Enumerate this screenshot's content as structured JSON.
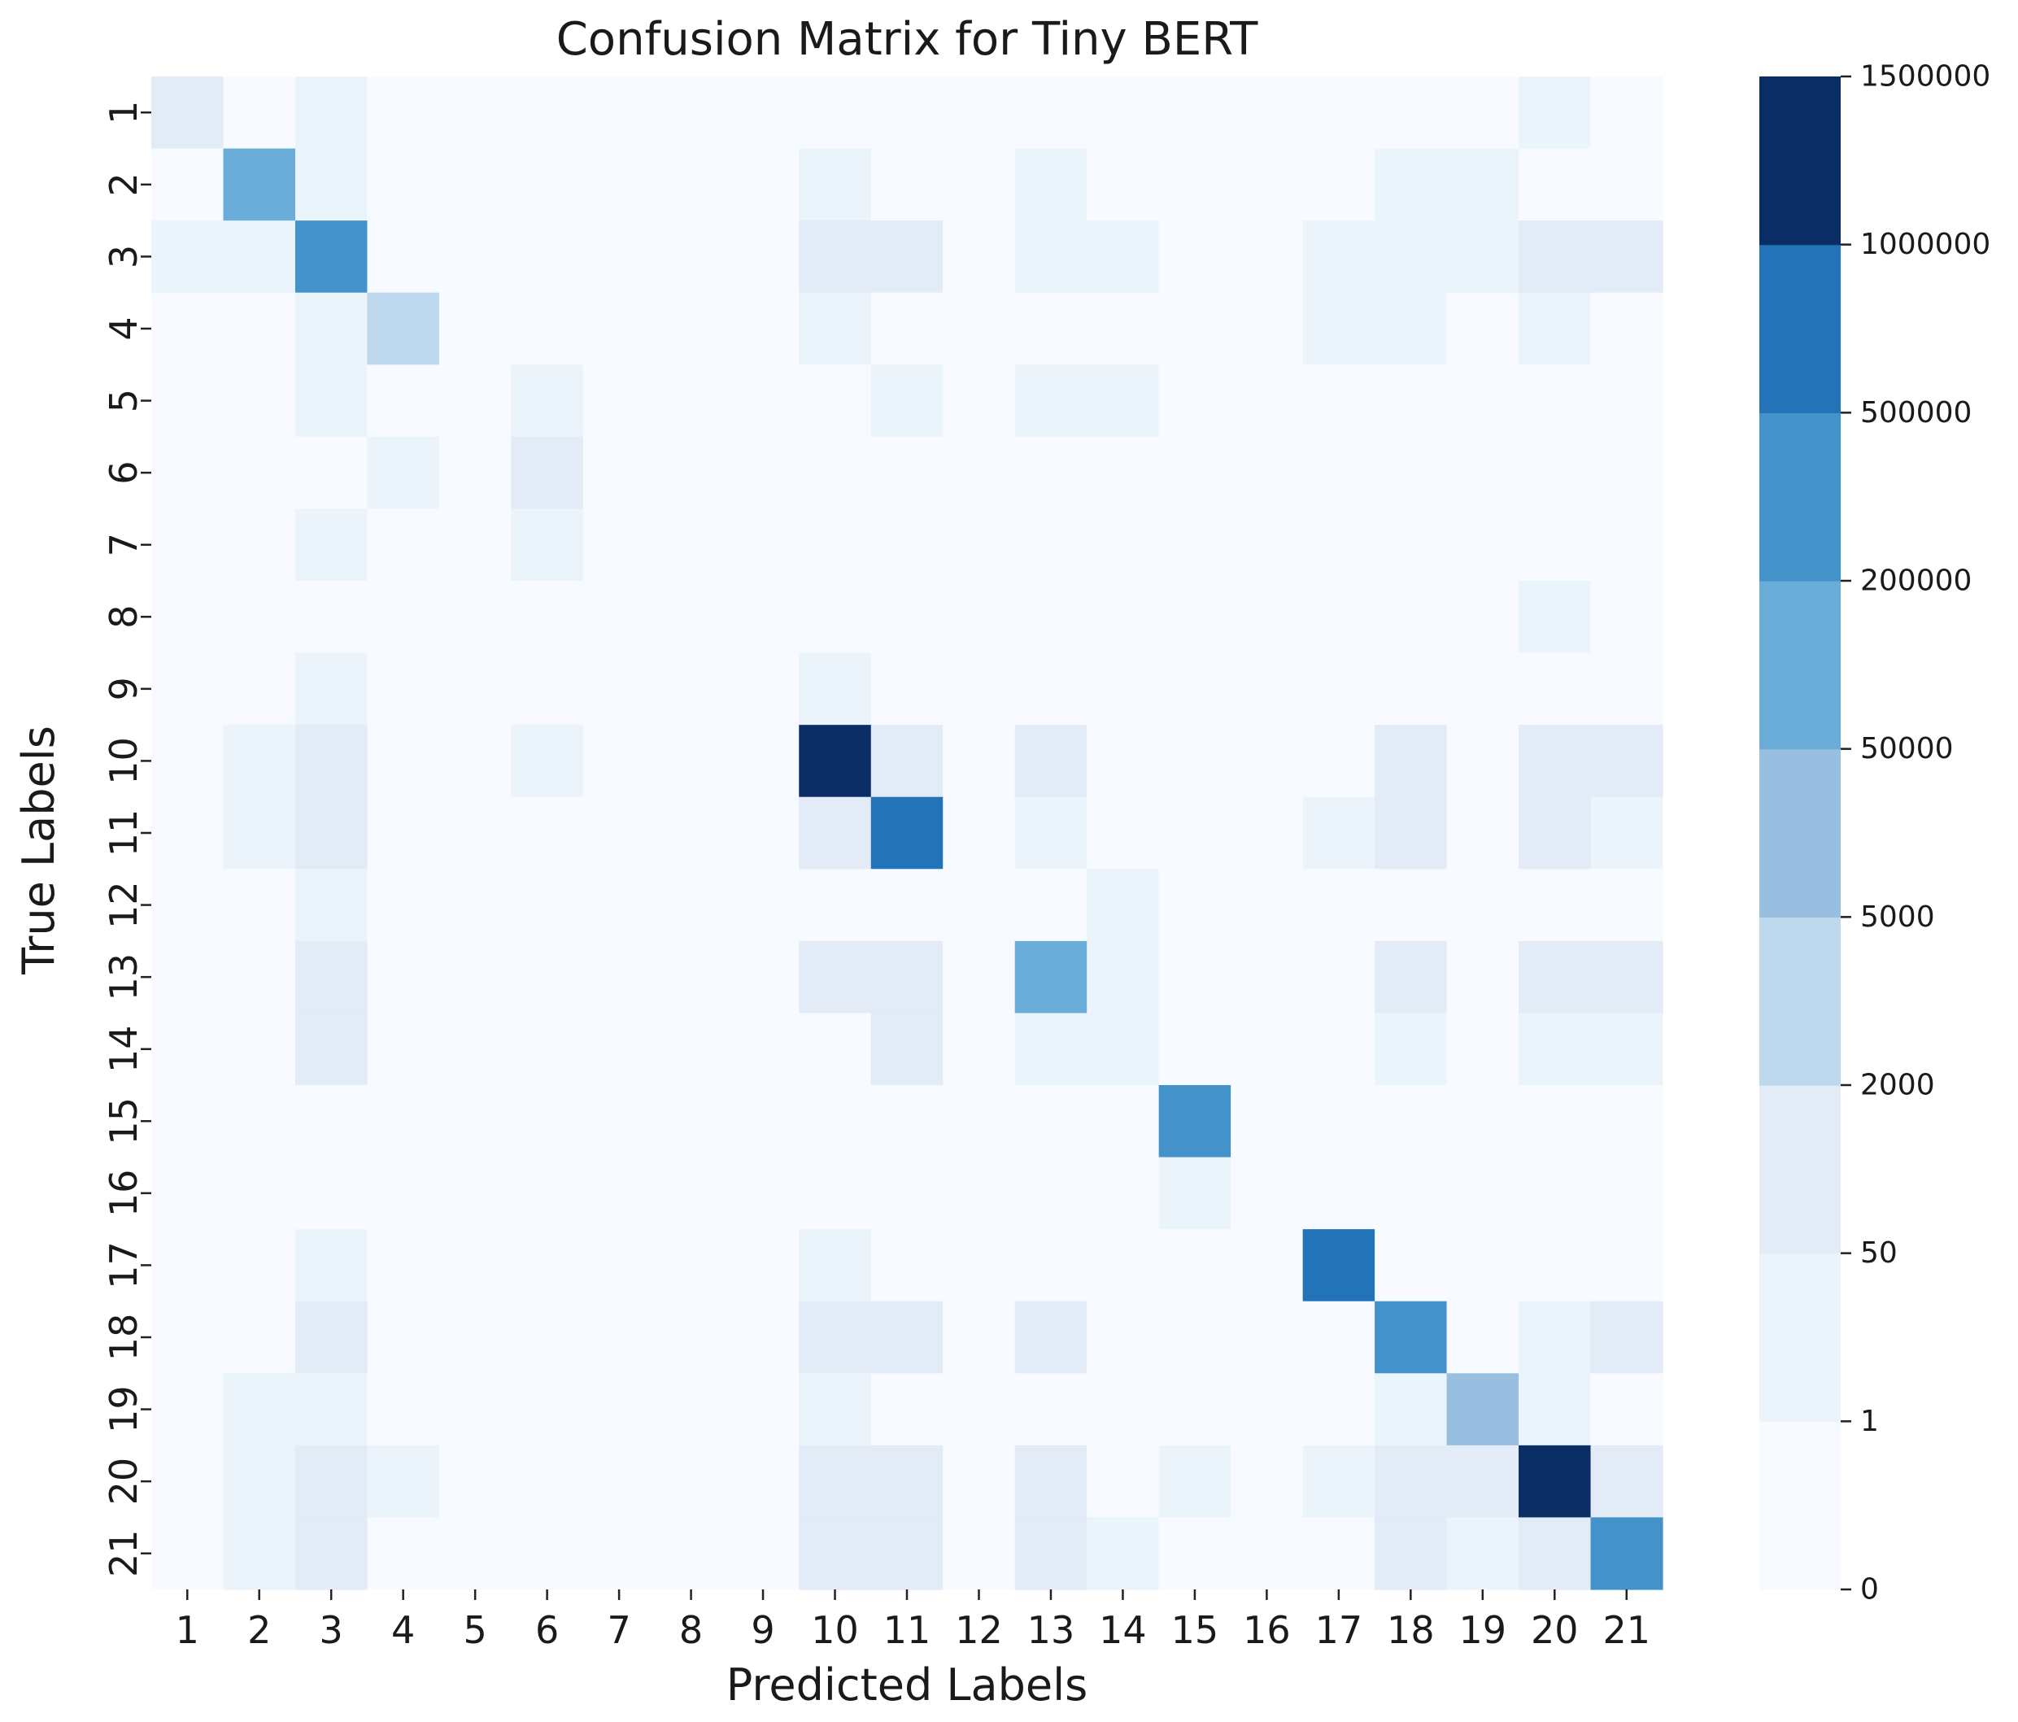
{
  "chart_data": {
    "type": "heatmap",
    "title": "Confusion Matrix for Tiny BERT",
    "xlabel": "Predicted Labels",
    "ylabel": "True Labels",
    "x_tick_labels": [
      "1",
      "2",
      "3",
      "4",
      "5",
      "6",
      "7",
      "8",
      "9",
      "10",
      "11",
      "12",
      "13",
      "14",
      "15",
      "16",
      "17",
      "18",
      "19",
      "20",
      "21"
    ],
    "y_tick_labels": [
      "1",
      "2",
      "3",
      "4",
      "5",
      "6",
      "7",
      "8",
      "9",
      "10",
      "11",
      "12",
      "13",
      "14",
      "15",
      "16",
      "17",
      "18",
      "19",
      "20",
      "21"
    ],
    "colorbar": {
      "tick_labels": [
        "0",
        "1",
        "50",
        "2000",
        "5000",
        "50000",
        "200000",
        "500000",
        "1000000",
        "1500000"
      ],
      "colors": [
        "#f7fbff",
        "#ebf3fb",
        "#e2ebf6",
        "#bed8ed",
        "#98bfdf",
        "#69add8",
        "#4392c9",
        "#2373b9",
        "#0a2d65"
      ]
    },
    "level_colors": [
      "#f7fbff",
      "#ebf3fb",
      "#e2ebf6",
      "#bed8ed",
      "#98bfdf",
      "#69add8",
      "#4392c9",
      "#2373b9",
      "#0a2d65"
    ],
    "matrix_levels": [
      [
        2,
        0,
        1,
        0,
        0,
        0,
        0,
        0,
        0,
        0,
        0,
        0,
        0,
        0,
        0,
        0,
        0,
        0,
        0,
        1,
        0
      ],
      [
        0,
        5,
        1,
        0,
        0,
        0,
        0,
        0,
        0,
        1,
        0,
        0,
        1,
        0,
        0,
        0,
        0,
        1,
        1,
        0,
        0
      ],
      [
        1,
        1,
        6,
        0,
        0,
        0,
        0,
        0,
        0,
        2,
        2,
        0,
        1,
        1,
        0,
        0,
        1,
        1,
        1,
        2,
        2
      ],
      [
        0,
        0,
        1,
        3,
        0,
        0,
        0,
        0,
        0,
        1,
        0,
        0,
        0,
        0,
        0,
        0,
        1,
        1,
        0,
        1,
        0
      ],
      [
        0,
        0,
        1,
        0,
        0,
        1,
        0,
        0,
        0,
        0,
        1,
        0,
        1,
        1,
        0,
        0,
        0,
        0,
        0,
        0,
        0
      ],
      [
        0,
        0,
        0,
        1,
        0,
        2,
        0,
        0,
        0,
        0,
        0,
        0,
        0,
        0,
        0,
        0,
        0,
        0,
        0,
        0,
        0
      ],
      [
        0,
        0,
        1,
        0,
        0,
        1,
        0,
        0,
        0,
        0,
        0,
        0,
        0,
        0,
        0,
        0,
        0,
        0,
        0,
        0,
        0
      ],
      [
        0,
        0,
        0,
        0,
        0,
        0,
        0,
        0,
        0,
        0,
        0,
        0,
        0,
        0,
        0,
        0,
        0,
        0,
        0,
        1,
        0
      ],
      [
        0,
        0,
        1,
        0,
        0,
        0,
        0,
        0,
        0,
        1,
        0,
        0,
        0,
        0,
        0,
        0,
        0,
        0,
        0,
        0,
        0
      ],
      [
        0,
        1,
        2,
        0,
        0,
        1,
        0,
        0,
        0,
        8,
        2,
        0,
        2,
        0,
        0,
        0,
        0,
        2,
        0,
        2,
        2
      ],
      [
        0,
        1,
        2,
        0,
        0,
        0,
        0,
        0,
        0,
        2,
        7,
        0,
        1,
        0,
        0,
        0,
        1,
        2,
        0,
        2,
        1
      ],
      [
        0,
        0,
        1,
        0,
        0,
        0,
        0,
        0,
        0,
        0,
        0,
        0,
        0,
        1,
        0,
        0,
        0,
        0,
        0,
        0,
        0
      ],
      [
        0,
        0,
        2,
        0,
        0,
        0,
        0,
        0,
        0,
        2,
        2,
        0,
        5,
        1,
        0,
        0,
        0,
        2,
        0,
        2,
        2
      ],
      [
        0,
        0,
        2,
        0,
        0,
        0,
        0,
        0,
        0,
        0,
        2,
        0,
        1,
        1,
        0,
        0,
        0,
        1,
        0,
        1,
        1
      ],
      [
        0,
        0,
        0,
        0,
        0,
        0,
        0,
        0,
        0,
        0,
        0,
        0,
        0,
        0,
        6,
        0,
        0,
        0,
        0,
        0,
        0
      ],
      [
        0,
        0,
        0,
        0,
        0,
        0,
        0,
        0,
        0,
        0,
        0,
        0,
        0,
        0,
        1,
        0,
        0,
        0,
        0,
        0,
        0
      ],
      [
        0,
        0,
        1,
        0,
        0,
        0,
        0,
        0,
        0,
        1,
        0,
        0,
        0,
        0,
        0,
        0,
        7,
        0,
        0,
        0,
        0
      ],
      [
        0,
        0,
        2,
        0,
        0,
        0,
        0,
        0,
        0,
        2,
        2,
        0,
        2,
        0,
        0,
        0,
        0,
        6,
        0,
        1,
        2
      ],
      [
        0,
        1,
        1,
        0,
        0,
        0,
        0,
        0,
        0,
        1,
        0,
        0,
        0,
        0,
        0,
        0,
        0,
        1,
        4,
        1,
        0
      ],
      [
        0,
        1,
        2,
        1,
        0,
        0,
        0,
        0,
        0,
        2,
        2,
        0,
        2,
        0,
        1,
        0,
        1,
        2,
        2,
        8,
        2
      ],
      [
        0,
        1,
        2,
        0,
        0,
        0,
        0,
        0,
        0,
        2,
        2,
        0,
        2,
        1,
        0,
        0,
        0,
        2,
        1,
        2,
        6
      ]
    ]
  }
}
